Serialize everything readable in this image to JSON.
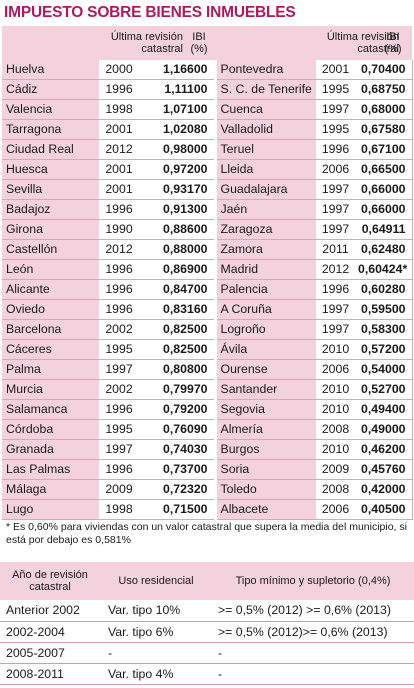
{
  "title": "IMPUESTO SOBRE BIENES INMUEBLES",
  "ibi_table": {
    "headers": {
      "rev_left": "Última revisión catastral",
      "ibi_left": "IBI (%)",
      "rev_right": "Última revisión catastral",
      "ibi_right": "IBI (%)"
    },
    "rows": [
      {
        "c1": "Huelva",
        "y1": "2000",
        "v1": "1,16600",
        "c2": "Pontevedra",
        "y2": "2001",
        "v2": "0,70400"
      },
      {
        "c1": "Cádiz",
        "y1": "1996",
        "v1": "1,11100",
        "c2": "S. C. de Tenerife",
        "y2": "1995",
        "v2": "0,68750"
      },
      {
        "c1": "Valencia",
        "y1": "1998",
        "v1": "1,07100",
        "c2": "Cuenca",
        "y2": "1997",
        "v2": "0,68000"
      },
      {
        "c1": "Tarragona",
        "y1": "2001",
        "v1": "1,02080",
        "c2": "Valladolid",
        "y2": "1995",
        "v2": "0,67580"
      },
      {
        "c1": "Ciudad  Real",
        "y1": "2012",
        "v1": "0,98000",
        "c2": "Teruel",
        "y2": "1996",
        "v2": "0,67100"
      },
      {
        "c1": "Huesca",
        "y1": "2001",
        "v1": "0,97200",
        "c2": "Lleida",
        "y2": "2006",
        "v2": "0,66500"
      },
      {
        "c1": "Sevilla",
        "y1": "2001",
        "v1": "0,93170",
        "c2": "Guadalajara",
        "y2": "1997",
        "v2": "0,66000"
      },
      {
        "c1": "Badajoz",
        "y1": "1996",
        "v1": "0,91300",
        "c2": "Jaén",
        "y2": "1997",
        "v2": "0,66000"
      },
      {
        "c1": "Girona",
        "y1": "1990",
        "v1": "0,88600",
        "c2": "Zaragoza",
        "y2": "1997",
        "v2": "0,64911"
      },
      {
        "c1": "Castellón",
        "y1": "2012",
        "v1": "0,88000",
        "c2": "Zamora",
        "y2": "2011",
        "v2": "0,62480"
      },
      {
        "c1": "León",
        "y1": "1996",
        "v1": "0,86900",
        "c2": "Madrid",
        "y2": "2012",
        "v2": "0,60424*"
      },
      {
        "c1": "Alicante",
        "y1": "1996",
        "v1": "0,84700",
        "c2": "Palencia",
        "y2": "1996",
        "v2": "0,60280"
      },
      {
        "c1": "Oviedo",
        "y1": "1996",
        "v1": "0,83160",
        "c2": "A Coruña",
        "y2": "1997",
        "v2": "0,59500"
      },
      {
        "c1": "Barcelona",
        "y1": "2002",
        "v1": "0,82500",
        "c2": "Logroño",
        "y2": "1997",
        "v2": "0,58300"
      },
      {
        "c1": "Cáceres",
        "y1": "1995",
        "v1": "0,82500",
        "c2": "Ávila",
        "y2": "2010",
        "v2": "0,57200"
      },
      {
        "c1": "Palma",
        "y1": "1997",
        "v1": "0,80800",
        "c2": "Ourense",
        "y2": "2006",
        "v2": "0,54000"
      },
      {
        "c1": "Murcia",
        "y1": "2002",
        "v1": "0,79970",
        "c2": "Santander",
        "y2": "2010",
        "v2": "0,52700"
      },
      {
        "c1": "Salamanca",
        "y1": "1996",
        "v1": "0,79200",
        "c2": "Segovia",
        "y2": "2010",
        "v2": "0,49400"
      },
      {
        "c1": "Córdoba",
        "y1": "1995",
        "v1": "0,76090",
        "c2": "Almería",
        "y2": "2008",
        "v2": "0,49000"
      },
      {
        "c1": "Granada",
        "y1": "1997",
        "v1": "0,74030",
        "c2": "Burgos",
        "y2": "2010",
        "v2": "0,46200"
      },
      {
        "c1": "Las Palmas",
        "y1": "1996",
        "v1": "0,73700",
        "c2": "Soria",
        "y2": "2009",
        "v2": "0,45760"
      },
      {
        "c1": "Málaga",
        "y1": "2009",
        "v1": "0,72320",
        "c2": "Toledo",
        "y2": "2008",
        "v2": "0,42000"
      },
      {
        "c1": "Lugo",
        "y1": "1998",
        "v1": "0,71500",
        "c2": "Albacete",
        "y2": "2006",
        "v2": "0,40500"
      }
    ]
  },
  "note": "* Es 0,60% para viviendas con un valor catastral que supera la media del municipio, si está por debajo es  0,581%",
  "bottom_table": {
    "headers": {
      "period": "Año de revisión catastral",
      "uso": "Uso residencial",
      "tipo": "Tipo mínimo y supletorio (0,4%)"
    },
    "rows": [
      {
        "period": "Anterior 2002",
        "uso": "Var. tipo 10%",
        "tipo": ">= 0,5% (2012) >= 0,6% (2013)"
      },
      {
        "period": "2002-2004",
        "uso": "Var. tipo 6%",
        "tipo": ">= 0,5% (2012)>= 0,6% (2013)"
      },
      {
        "period": "2005-2007",
        "uso": "-",
        "tipo": "-"
      },
      {
        "period": "2008-2011",
        "uso": "Var. tipo 4%",
        "tipo": "-"
      }
    ]
  },
  "colors": {
    "title": "#b0195f",
    "header_bg": "#f3d2de",
    "rule": "#d9a7b9"
  }
}
